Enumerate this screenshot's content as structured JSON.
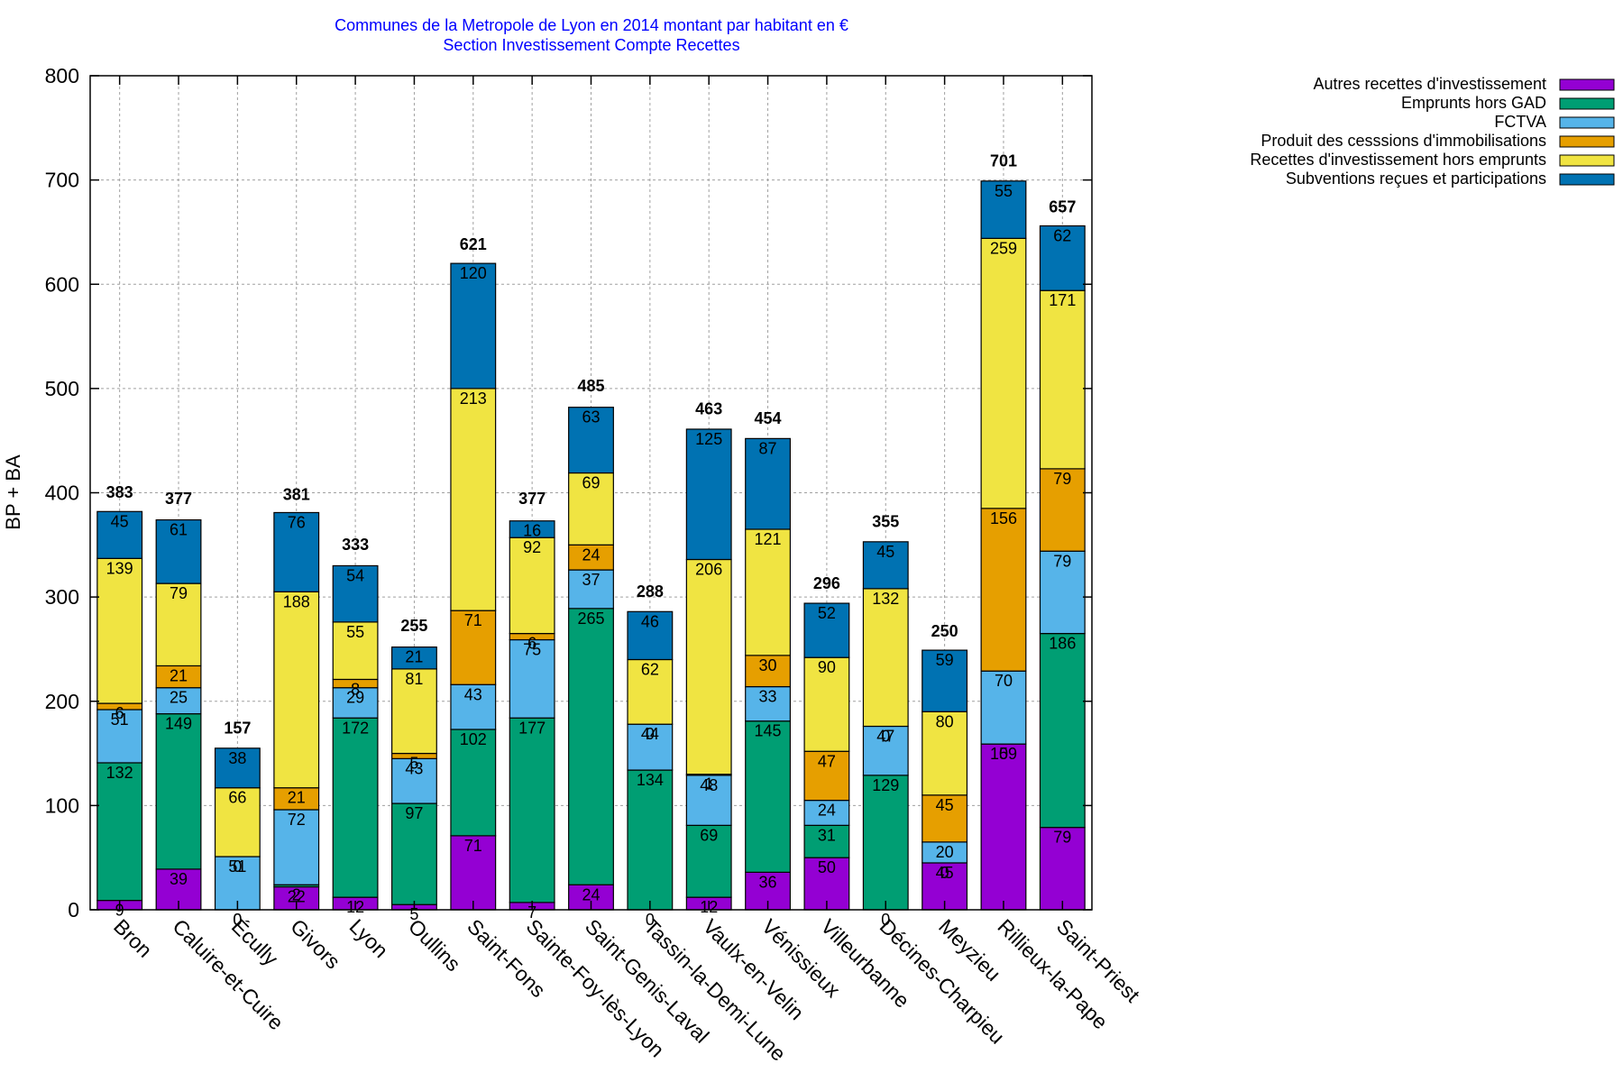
{
  "chart_data": {
    "type": "bar",
    "stacked": true,
    "title": "Communes de la Metropole de Lyon en 2014 montant par habitant en €",
    "subtitle": "Section Investissement Compte Recettes",
    "xlabel": "",
    "ylabel": "BP + BA",
    "ylim": [
      0,
      800
    ],
    "yticks": [
      0,
      100,
      200,
      300,
      400,
      500,
      600,
      700,
      800
    ],
    "grid": true,
    "legend_position": "top-right",
    "categories": [
      "Bron",
      "Caluire-et-Cuire",
      "Écully",
      "Givors",
      "Lyon",
      "Oullins",
      "Saint-Fons",
      "Sainte-Foy-lès-Lyon",
      "Saint-Genis-Laval",
      "Tassin-la-Demi-Lune",
      "Vaulx-en-Velin",
      "Vénissieux",
      "Villeurbanne",
      "Décines-Charpieu",
      "Meyzieu",
      "Rillieux-la-Pape",
      "Saint-Priest"
    ],
    "totals": [
      383,
      377,
      157,
      381,
      333,
      255,
      621,
      377,
      485,
      288,
      463,
      454,
      296,
      355,
      250,
      701,
      657
    ],
    "series": [
      {
        "name": "Autres recettes d'investissement",
        "color": "#9400d3",
        "values": [
          9,
          39,
          0,
          22,
          12,
          5,
          71,
          7,
          24,
          0,
          12,
          36,
          50,
          0,
          45,
          159,
          79
        ]
      },
      {
        "name": "Emprunts hors GAD",
        "color": "#009e73",
        "values": [
          132,
          149,
          0,
          2,
          172,
          97,
          102,
          177,
          265,
          134,
          69,
          145,
          31,
          129,
          0,
          0,
          186
        ]
      },
      {
        "name": "FCTVA",
        "color": "#56b4e9",
        "values": [
          51,
          25,
          51,
          72,
          29,
          43,
          43,
          75,
          37,
          44,
          48,
          33,
          24,
          47,
          20,
          70,
          79
        ]
      },
      {
        "name": "Produit des cesssions d'immobilisations",
        "color": "#e69f00",
        "values": [
          6,
          21,
          0,
          21,
          8,
          5,
          71,
          6,
          24,
          0,
          1,
          30,
          47,
          0,
          45,
          156,
          79
        ]
      },
      {
        "name": "Recettes d'investissement hors emprunts",
        "color": "#f0e442",
        "values": [
          139,
          79,
          66,
          188,
          55,
          81,
          213,
          92,
          69,
          62,
          206,
          121,
          90,
          132,
          80,
          259,
          171
        ]
      },
      {
        "name": "Subventions reçues et participations",
        "color": "#0072b2",
        "values": [
          45,
          61,
          38,
          76,
          54,
          21,
          120,
          16,
          63,
          46,
          125,
          87,
          52,
          45,
          59,
          55,
          62
        ]
      }
    ]
  }
}
